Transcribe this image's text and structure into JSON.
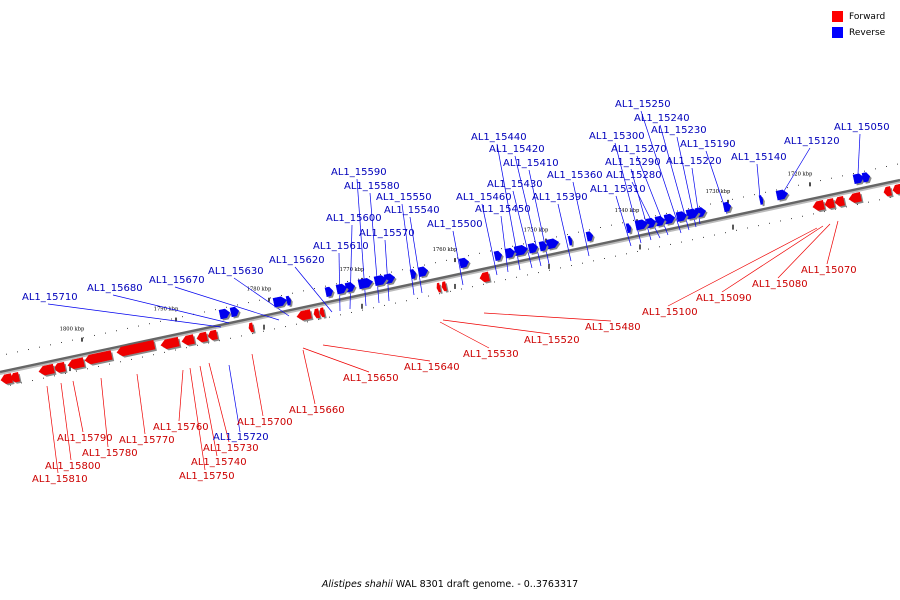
{
  "legend": {
    "items": [
      {
        "label": "Forward",
        "color": "#ff0000"
      },
      {
        "label": "Reverse",
        "color": "#0000ff"
      }
    ]
  },
  "footer": {
    "organism": "Alistipes shahii",
    "suffix": "WAL 8301 draft genome. - 0..3763317"
  },
  "colors": {
    "forward": "#ee0000",
    "forward_label": "#cc0000",
    "reverse": "#0000ee",
    "reverse_label": "#0000bb",
    "backbone": "#666666"
  },
  "ticks_kbp": [
    "1720 kbp",
    "1730 kbp",
    "1740 kbp",
    "1750 kbp",
    "1760 kbp",
    "1770 kbp",
    "1780 kbp",
    "1790 kbp",
    "1800 kbp"
  ],
  "reverse_genes": [
    "AL1_15050",
    "AL1_15120",
    "AL1_15140",
    "AL1_15190",
    "AL1_15220",
    "AL1_15230",
    "AL1_15240",
    "AL1_15250",
    "AL1_15270",
    "AL1_15280",
    "AL1_15290",
    "AL1_15300",
    "AL1_15310",
    "AL1_15360",
    "AL1_15390",
    "AL1_15410",
    "AL1_15420",
    "AL1_15430",
    "AL1_15440",
    "AL1_15450",
    "AL1_15460",
    "AL1_15500",
    "AL1_15540",
    "AL1_15550",
    "AL1_15570",
    "AL1_15580",
    "AL1_15590",
    "AL1_15600",
    "AL1_15610",
    "AL1_15620",
    "AL1_15630",
    "AL1_15670",
    "AL1_15680",
    "AL1_15710",
    "AL1_15720"
  ],
  "forward_genes": [
    "AL1_15070",
    "AL1_15080",
    "AL1_15090",
    "AL1_15100",
    "AL1_15480",
    "AL1_15520",
    "AL1_15530",
    "AL1_15640",
    "AL1_15650",
    "AL1_15660",
    "AL1_15700",
    "AL1_15730",
    "AL1_15740",
    "AL1_15750",
    "AL1_15760",
    "AL1_15770",
    "AL1_15780",
    "AL1_15790",
    "AL1_15800",
    "AL1_15810"
  ]
}
